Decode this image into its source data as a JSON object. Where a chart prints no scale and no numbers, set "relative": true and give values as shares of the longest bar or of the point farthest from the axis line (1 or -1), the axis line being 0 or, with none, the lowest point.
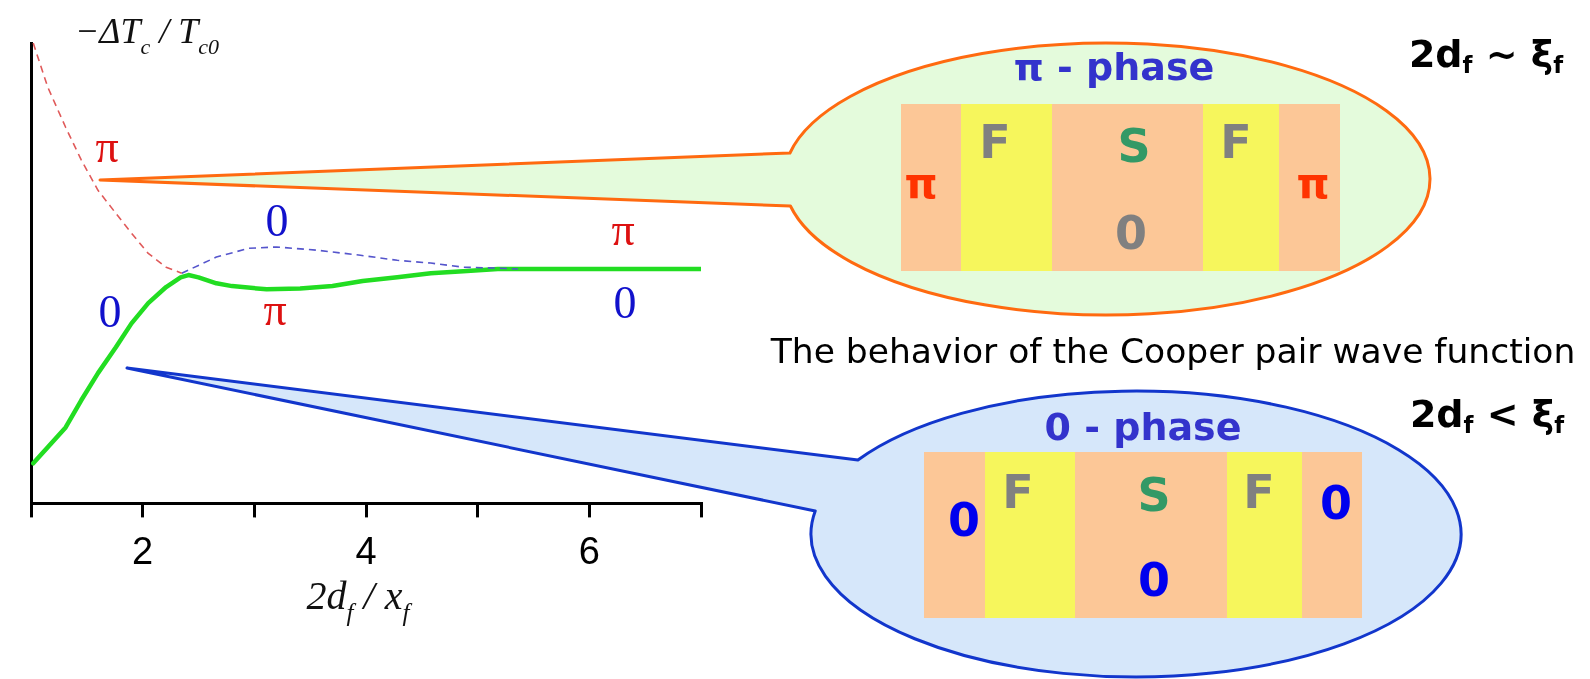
{
  "chart_data": {
    "type": "line",
    "relative": true,
    "xlabel": "2d$_{f}$ / x$_{f}$",
    "ylabel": "−ΔT$_{c}$ / T$_{c0}$",
    "xlim": [
      1,
      7
    ],
    "xticks": [
      {
        "value": 1,
        "label": null
      },
      2,
      {
        "value": 3,
        "label": null
      },
      4,
      {
        "value": 5,
        "label": null
      },
      6,
      {
        "value": 7,
        "label": null
      }
    ],
    "series": [
      {
        "color": "#e05a5a",
        "line_style": "dashed",
        "x": [
          1.02,
          1.15,
          1.31,
          1.45,
          1.6,
          1.76,
          1.9,
          2.05,
          2.21,
          2.35
        ],
        "values": [
          1,
          0.904,
          0.817,
          0.746,
          0.68,
          0.63,
          0.587,
          0.543,
          0.513,
          0.5
        ]
      },
      {
        "color": "#5555cc",
        "line_style": "dashed",
        "x": [
          2.35,
          2.66,
          2.95,
          3.2,
          3.56,
          3.95,
          4.28,
          4.58,
          4.87,
          5.18,
          5.36
        ],
        "values": [
          0.5,
          0.535,
          0.554,
          0.557,
          0.55,
          0.539,
          0.528,
          0.522,
          0.513,
          0.511,
          0.509
        ]
      },
      {
        "color": "#22dd22",
        "line_style": "solid",
        "x": [
          1.02,
          1.15,
          1.31,
          1.45,
          1.6,
          1.76,
          1.9,
          2.05,
          2.21,
          2.34,
          2.41,
          2.5,
          2.66,
          2.8,
          3.11,
          3.41,
          3.7,
          3.97,
          4.28,
          4.58,
          4.87,
          5.18,
          5.48,
          6.11,
          7
        ],
        "values": [
          0.087,
          0.122,
          0.165,
          0.224,
          0.283,
          0.339,
          0.391,
          0.435,
          0.47,
          0.491,
          0.496,
          0.491,
          0.478,
          0.472,
          0.465,
          0.467,
          0.472,
          0.483,
          0.491,
          0.5,
          0.504,
          0.509,
          0.509,
          0.509,
          0.509
        ]
      }
    ],
    "annotations": [
      "π",
      "0",
      "0",
      "π",
      "π",
      "0",
      "2d$_{f}$ ~ ξ$_{f}$",
      "π - phase",
      "F",
      "S",
      "F",
      "π",
      "π",
      "0",
      "The behavior of the Cooper pair wave function",
      "2d$_{f}$ < ξ$_{f}$",
      "0 - phase",
      "F",
      "S",
      "F",
      "0",
      "0",
      "0"
    ]
  }
}
